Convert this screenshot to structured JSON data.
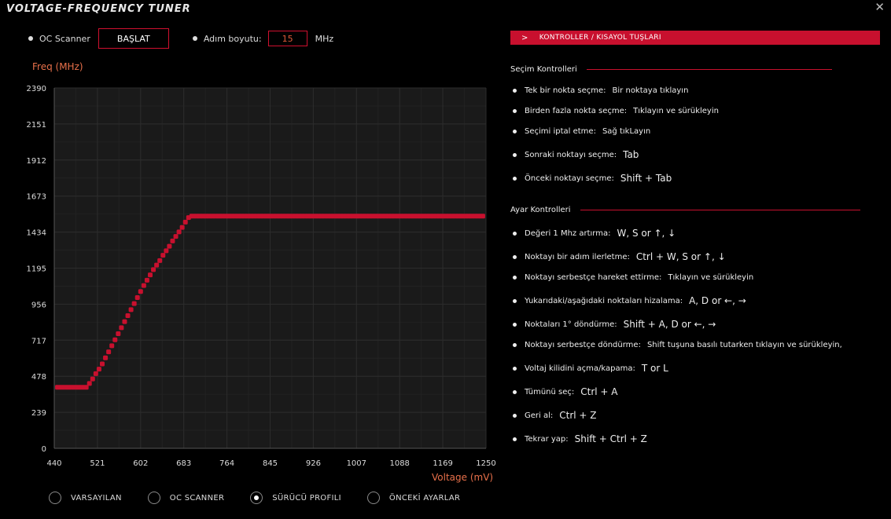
{
  "window": {
    "title": "VOLTAGE-FREQUENCY TUNER",
    "close_glyph": "✕"
  },
  "controls": {
    "oc_scanner_label": "OC Scanner",
    "start_button": "BAŞLAT",
    "step_label": "Adım boyutu:",
    "step_value": "15",
    "step_unit": "MHz"
  },
  "chart_data": {
    "type": "scatter",
    "xlabel": "Voltage (mV)",
    "ylabel": "Freq (MHz)",
    "xlim": [
      440,
      1250
    ],
    "ylim": [
      0,
      2390
    ],
    "x_ticks": [
      440,
      521,
      602,
      683,
      764,
      845,
      926,
      1007,
      1088,
      1169,
      1250
    ],
    "y_ticks": [
      0,
      239,
      478,
      717,
      956,
      1195,
      1434,
      1673,
      1912,
      2151,
      2390
    ],
    "grid": true,
    "series": [
      {
        "color": "#c8102e",
        "x": [
          446,
          452,
          458,
          464,
          470,
          476,
          482,
          488,
          494,
          500,
          506,
          512,
          518,
          524,
          530,
          536,
          542,
          548,
          554,
          560,
          566,
          572,
          578,
          584,
          590,
          596,
          602,
          608,
          614,
          620,
          626,
          632,
          638,
          644,
          650,
          656,
          662,
          668,
          674,
          680,
          686,
          692,
          698,
          704,
          710,
          716,
          722,
          728,
          734,
          740,
          746,
          752,
          758,
          764,
          770,
          776,
          782,
          788,
          794,
          800,
          806,
          812,
          818,
          824,
          830,
          836,
          842,
          848,
          854,
          860,
          866,
          872,
          878,
          884,
          890,
          896,
          902,
          908,
          914,
          920,
          926,
          932,
          938,
          944,
          950,
          956,
          962,
          968,
          974,
          980,
          986,
          992,
          998,
          1004,
          1010,
          1016,
          1022,
          1028,
          1034,
          1040,
          1046,
          1052,
          1058,
          1064,
          1070,
          1076,
          1082,
          1088,
          1094,
          1100,
          1106,
          1112,
          1118,
          1124,
          1130,
          1136,
          1142,
          1148,
          1154,
          1160,
          1166,
          1172,
          1178,
          1184,
          1190,
          1196,
          1202,
          1208,
          1214,
          1220,
          1226,
          1232,
          1238,
          1244
        ],
        "y": [
          405,
          405,
          405,
          405,
          405,
          405,
          405,
          405,
          405,
          405,
          430,
          460,
          495,
          525,
          560,
          600,
          640,
          680,
          720,
          760,
          800,
          840,
          880,
          920,
          960,
          1000,
          1040,
          1080,
          1115,
          1150,
          1185,
          1215,
          1245,
          1280,
          1310,
          1340,
          1375,
          1405,
          1435,
          1465,
          1500,
          1530,
          1540,
          1540,
          1540,
          1540,
          1540,
          1540,
          1540,
          1540,
          1540,
          1540,
          1540,
          1540,
          1540,
          1540,
          1540,
          1540,
          1540,
          1540,
          1540,
          1540,
          1540,
          1540,
          1540,
          1540,
          1540,
          1540,
          1540,
          1540,
          1540,
          1540,
          1540,
          1540,
          1540,
          1540,
          1540,
          1540,
          1540,
          1540,
          1540,
          1540,
          1540,
          1540,
          1540,
          1540,
          1540,
          1540,
          1540,
          1540,
          1540,
          1540,
          1540,
          1540,
          1540,
          1540,
          1540,
          1540,
          1540,
          1540,
          1540,
          1540,
          1540,
          1540,
          1540,
          1540,
          1540,
          1540,
          1540,
          1540,
          1540,
          1540,
          1540,
          1540,
          1540,
          1540,
          1540,
          1540,
          1540,
          1540,
          1540,
          1540,
          1540,
          1540,
          1540,
          1540,
          1540,
          1540,
          1540,
          1540,
          1540,
          1540,
          1540,
          1540
        ]
      }
    ]
  },
  "modes": [
    {
      "label": "VARSAYILAN",
      "selected": false
    },
    {
      "label": "OC SCANNER",
      "selected": false
    },
    {
      "label": "SÜRÜCÜ PROFILI",
      "selected": true
    },
    {
      "label": "ÖNCEKİ AYARLAR",
      "selected": false
    }
  ],
  "panel": {
    "header": "KONTROLLER / KISAYOL TUŞLARI",
    "sections": [
      {
        "title": "Seçim Kontrolleri",
        "items": [
          {
            "label": "Tek bir nokta seçme:",
            "value": "Bir noktaya tıklayın",
            "big": false
          },
          {
            "label": "Birden fazla nokta seçme:",
            "value": "Tıklayın ve sürükleyin",
            "big": false
          },
          {
            "label": "Seçimi iptal etme:",
            "value": "Sağ tıkLayın",
            "big": false
          },
          {
            "label": "Sonraki noktayı seçme:",
            "value": "Tab",
            "big": true
          },
          {
            "label": "Önceki noktayı seçme:",
            "value": "Shift + Tab",
            "big": true
          }
        ]
      },
      {
        "title": "Ayar Kontrolleri",
        "items": [
          {
            "label": "Değeri 1 Mhz artırma:",
            "value": "W, S or ↑, ↓",
            "big": true
          },
          {
            "label": "Noktayı bir adım ilerletme:",
            "value": "Ctrl + W, S or ↑, ↓",
            "big": true
          },
          {
            "label": "Noktayı serbestçe hareket ettirme:",
            "value": "Tıklayın ve sürükleyin",
            "big": false
          },
          {
            "label": "Yukarıdaki/aşağıdaki noktaları hizalama:",
            "value": "A, D or ←, →",
            "big": true
          },
          {
            "label": "Noktaları 1° döndürme:",
            "value": "Shift + A, D or ←, →",
            "big": true
          },
          {
            "label": "Noktayı serbestçe döndürme:",
            "value": "Shift tuşuna basılı tutarken tıklayın ve sürükleyin,",
            "big": false
          },
          {
            "label": "Voltaj kilidini açma/kapama:",
            "value": "T or L",
            "big": true
          },
          {
            "label": "Tümünü seç:",
            "value": "Ctrl + A",
            "big": true
          },
          {
            "label": "Geri al:",
            "value": "Ctrl + Z",
            "big": true
          },
          {
            "label": "Tekrar yap:",
            "value": "Shift + Ctrl + Z",
            "big": true
          }
        ]
      }
    ]
  }
}
